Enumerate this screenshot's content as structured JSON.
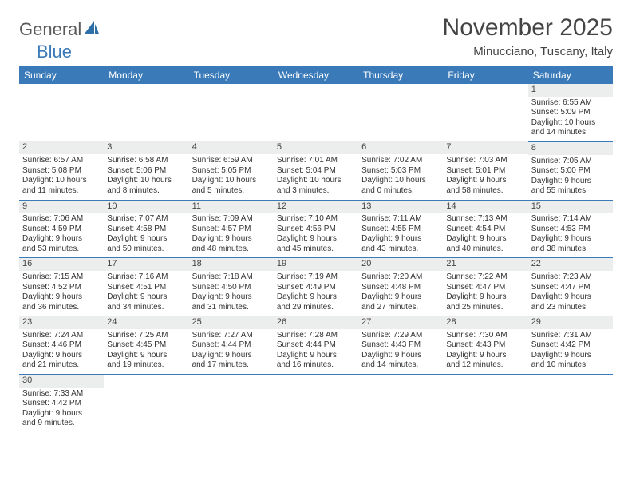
{
  "logo": {
    "text1": "General",
    "text2": "Blue"
  },
  "title": "November 2025",
  "location": "Minucciano, Tuscany, Italy",
  "colors": {
    "header_bg": "#3a7ab8",
    "header_fg": "#ffffff",
    "daynum_bg": "#eceded",
    "border": "#3a7ab8",
    "text": "#333333"
  },
  "day_names": [
    "Sunday",
    "Monday",
    "Tuesday",
    "Wednesday",
    "Thursday",
    "Friday",
    "Saturday"
  ],
  "weeks": [
    [
      null,
      null,
      null,
      null,
      null,
      null,
      {
        "n": "1",
        "sr": "Sunrise: 6:55 AM",
        "ss": "Sunset: 5:09 PM",
        "d1": "Daylight: 10 hours",
        "d2": "and 14 minutes."
      }
    ],
    [
      {
        "n": "2",
        "sr": "Sunrise: 6:57 AM",
        "ss": "Sunset: 5:08 PM",
        "d1": "Daylight: 10 hours",
        "d2": "and 11 minutes."
      },
      {
        "n": "3",
        "sr": "Sunrise: 6:58 AM",
        "ss": "Sunset: 5:06 PM",
        "d1": "Daylight: 10 hours",
        "d2": "and 8 minutes."
      },
      {
        "n": "4",
        "sr": "Sunrise: 6:59 AM",
        "ss": "Sunset: 5:05 PM",
        "d1": "Daylight: 10 hours",
        "d2": "and 5 minutes."
      },
      {
        "n": "5",
        "sr": "Sunrise: 7:01 AM",
        "ss": "Sunset: 5:04 PM",
        "d1": "Daylight: 10 hours",
        "d2": "and 3 minutes."
      },
      {
        "n": "6",
        "sr": "Sunrise: 7:02 AM",
        "ss": "Sunset: 5:03 PM",
        "d1": "Daylight: 10 hours",
        "d2": "and 0 minutes."
      },
      {
        "n": "7",
        "sr": "Sunrise: 7:03 AM",
        "ss": "Sunset: 5:01 PM",
        "d1": "Daylight: 9 hours",
        "d2": "and 58 minutes."
      },
      {
        "n": "8",
        "sr": "Sunrise: 7:05 AM",
        "ss": "Sunset: 5:00 PM",
        "d1": "Daylight: 9 hours",
        "d2": "and 55 minutes."
      }
    ],
    [
      {
        "n": "9",
        "sr": "Sunrise: 7:06 AM",
        "ss": "Sunset: 4:59 PM",
        "d1": "Daylight: 9 hours",
        "d2": "and 53 minutes."
      },
      {
        "n": "10",
        "sr": "Sunrise: 7:07 AM",
        "ss": "Sunset: 4:58 PM",
        "d1": "Daylight: 9 hours",
        "d2": "and 50 minutes."
      },
      {
        "n": "11",
        "sr": "Sunrise: 7:09 AM",
        "ss": "Sunset: 4:57 PM",
        "d1": "Daylight: 9 hours",
        "d2": "and 48 minutes."
      },
      {
        "n": "12",
        "sr": "Sunrise: 7:10 AM",
        "ss": "Sunset: 4:56 PM",
        "d1": "Daylight: 9 hours",
        "d2": "and 45 minutes."
      },
      {
        "n": "13",
        "sr": "Sunrise: 7:11 AM",
        "ss": "Sunset: 4:55 PM",
        "d1": "Daylight: 9 hours",
        "d2": "and 43 minutes."
      },
      {
        "n": "14",
        "sr": "Sunrise: 7:13 AM",
        "ss": "Sunset: 4:54 PM",
        "d1": "Daylight: 9 hours",
        "d2": "and 40 minutes."
      },
      {
        "n": "15",
        "sr": "Sunrise: 7:14 AM",
        "ss": "Sunset: 4:53 PM",
        "d1": "Daylight: 9 hours",
        "d2": "and 38 minutes."
      }
    ],
    [
      {
        "n": "16",
        "sr": "Sunrise: 7:15 AM",
        "ss": "Sunset: 4:52 PM",
        "d1": "Daylight: 9 hours",
        "d2": "and 36 minutes."
      },
      {
        "n": "17",
        "sr": "Sunrise: 7:16 AM",
        "ss": "Sunset: 4:51 PM",
        "d1": "Daylight: 9 hours",
        "d2": "and 34 minutes."
      },
      {
        "n": "18",
        "sr": "Sunrise: 7:18 AM",
        "ss": "Sunset: 4:50 PM",
        "d1": "Daylight: 9 hours",
        "d2": "and 31 minutes."
      },
      {
        "n": "19",
        "sr": "Sunrise: 7:19 AM",
        "ss": "Sunset: 4:49 PM",
        "d1": "Daylight: 9 hours",
        "d2": "and 29 minutes."
      },
      {
        "n": "20",
        "sr": "Sunrise: 7:20 AM",
        "ss": "Sunset: 4:48 PM",
        "d1": "Daylight: 9 hours",
        "d2": "and 27 minutes."
      },
      {
        "n": "21",
        "sr": "Sunrise: 7:22 AM",
        "ss": "Sunset: 4:47 PM",
        "d1": "Daylight: 9 hours",
        "d2": "and 25 minutes."
      },
      {
        "n": "22",
        "sr": "Sunrise: 7:23 AM",
        "ss": "Sunset: 4:47 PM",
        "d1": "Daylight: 9 hours",
        "d2": "and 23 minutes."
      }
    ],
    [
      {
        "n": "23",
        "sr": "Sunrise: 7:24 AM",
        "ss": "Sunset: 4:46 PM",
        "d1": "Daylight: 9 hours",
        "d2": "and 21 minutes."
      },
      {
        "n": "24",
        "sr": "Sunrise: 7:25 AM",
        "ss": "Sunset: 4:45 PM",
        "d1": "Daylight: 9 hours",
        "d2": "and 19 minutes."
      },
      {
        "n": "25",
        "sr": "Sunrise: 7:27 AM",
        "ss": "Sunset: 4:44 PM",
        "d1": "Daylight: 9 hours",
        "d2": "and 17 minutes."
      },
      {
        "n": "26",
        "sr": "Sunrise: 7:28 AM",
        "ss": "Sunset: 4:44 PM",
        "d1": "Daylight: 9 hours",
        "d2": "and 16 minutes."
      },
      {
        "n": "27",
        "sr": "Sunrise: 7:29 AM",
        "ss": "Sunset: 4:43 PM",
        "d1": "Daylight: 9 hours",
        "d2": "and 14 minutes."
      },
      {
        "n": "28",
        "sr": "Sunrise: 7:30 AM",
        "ss": "Sunset: 4:43 PM",
        "d1": "Daylight: 9 hours",
        "d2": "and 12 minutes."
      },
      {
        "n": "29",
        "sr": "Sunrise: 7:31 AM",
        "ss": "Sunset: 4:42 PM",
        "d1": "Daylight: 9 hours",
        "d2": "and 10 minutes."
      }
    ],
    [
      {
        "n": "30",
        "sr": "Sunrise: 7:33 AM",
        "ss": "Sunset: 4:42 PM",
        "d1": "Daylight: 9 hours",
        "d2": "and 9 minutes."
      },
      null,
      null,
      null,
      null,
      null,
      null
    ]
  ]
}
